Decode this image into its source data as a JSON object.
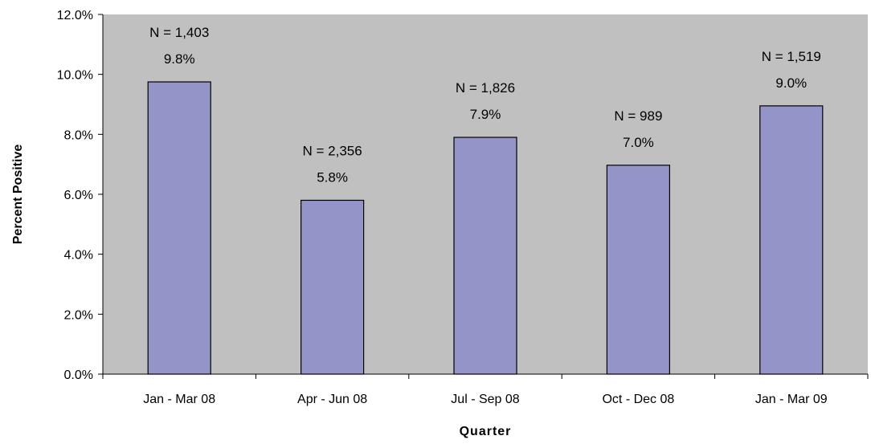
{
  "chart_data": {
    "type": "bar",
    "title": "",
    "xlabel": "Quarter",
    "ylabel": "Percent Positive",
    "ylim": [
      0,
      12
    ],
    "y_tick_values": [
      0,
      2,
      4,
      6,
      8,
      10,
      12
    ],
    "y_tick_labels": [
      "0.0%",
      "2.0%",
      "4.0%",
      "6.0%",
      "8.0%",
      "10.0%",
      "12.0%"
    ],
    "categories": [
      "Jan - Mar 08",
      "Apr - Jun 08",
      "Jul - Sep 08",
      "Oct - Dec 08",
      "Jan - Mar 09"
    ],
    "values": [
      9.75,
      5.8,
      7.9,
      6.97,
      8.95
    ],
    "value_labels": [
      "9.8%",
      "5.8%",
      "7.9%",
      "7.0%",
      "9.0%"
    ],
    "n_labels": [
      "N = 1,403",
      "N = 2,356",
      "N = 1,826",
      "N = 989",
      "N = 1,519"
    ],
    "grid": false,
    "legend": "none",
    "colors": {
      "plot_background": "#c0c0c0",
      "bar_fill": "#9494c8",
      "bar_stroke": "#000000",
      "axis": "#000000"
    }
  }
}
